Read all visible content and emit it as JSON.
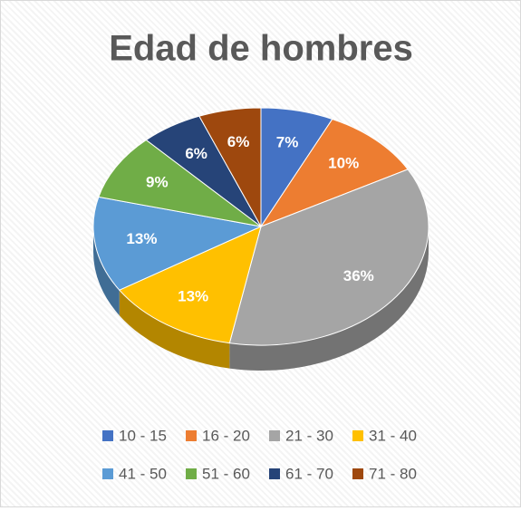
{
  "chart_data": {
    "type": "pie",
    "title": "Edad de hombres",
    "categories": [
      "10 - 15",
      "16 - 20",
      "21 - 30",
      "31 - 40",
      "41 - 50",
      "51 - 60",
      "61 - 70",
      "71 - 80"
    ],
    "values": [
      7,
      10,
      36,
      13,
      13,
      9,
      6,
      6
    ],
    "value_labels": [
      "7%",
      "10%",
      "36%",
      "13%",
      "13%",
      "9%",
      "6%",
      "6%"
    ],
    "colors": [
      "#4472c4",
      "#ed7d31",
      "#a5a5a5",
      "#ffc000",
      "#5b9bd5",
      "#70ad47",
      "#264478",
      "#9e480e"
    ],
    "legend": "bottom"
  }
}
